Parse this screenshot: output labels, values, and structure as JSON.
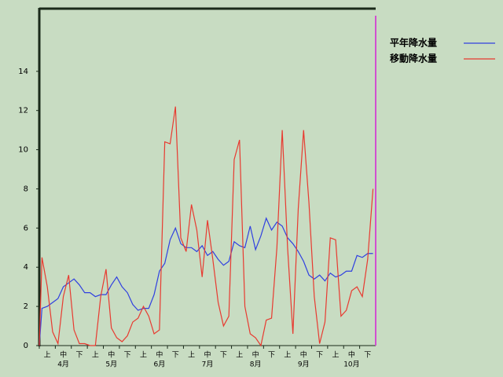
{
  "chart_data": {
    "type": "line",
    "categories": [
      null,
      "上",
      null,
      null,
      "中",
      null,
      null,
      "下",
      null,
      null,
      "上",
      null,
      null,
      "中",
      null,
      null,
      "下",
      null,
      null,
      "上",
      null,
      null,
      "中",
      null,
      null,
      "下",
      null,
      null,
      "上",
      null,
      null,
      "中",
      null,
      null,
      "下",
      null,
      null,
      "上",
      null,
      null,
      "中",
      null,
      null,
      "下",
      null,
      null,
      "上",
      null,
      null,
      "中",
      null,
      null,
      "下",
      null,
      null,
      "上",
      null,
      null,
      "中",
      null,
      null,
      "下",
      null
    ],
    "month_labels": [
      "4月",
      "5月",
      "6月",
      "7月",
      "8月",
      "9月",
      "10月"
    ],
    "series": [
      {
        "name": "平年降水量",
        "color": "#3040e0",
        "values": [
          1.9,
          2.0,
          2.2,
          2.4,
          3.0,
          3.2,
          3.4,
          3.1,
          2.7,
          2.7,
          2.5,
          2.6,
          2.6,
          3.1,
          3.5,
          3.0,
          2.7,
          2.1,
          1.8,
          1.9,
          1.9,
          2.6,
          3.8,
          4.2,
          5.4,
          6.0,
          5.2,
          5.0,
          5.0,
          4.8,
          5.1,
          4.6,
          4.8,
          4.4,
          4.1,
          4.3,
          5.3,
          5.1,
          5.0,
          6.1,
          4.9,
          5.6,
          6.5,
          5.9,
          6.3,
          6.1,
          5.5,
          5.2,
          4.8,
          4.3,
          3.6,
          3.4,
          3.6,
          3.3,
          3.7,
          3.5,
          3.6,
          3.8,
          3.8,
          4.6,
          4.5,
          4.7,
          4.7
        ]
      },
      {
        "name": "移動降水量",
        "color": "#e83a30",
        "values": [
          4.5,
          3.0,
          0.7,
          0.1,
          2.5,
          3.6,
          0.8,
          0.1,
          0.1,
          0,
          0,
          2.5,
          3.9,
          0.9,
          0.4,
          0.2,
          0.5,
          1.2,
          1.4,
          2.0,
          1.5,
          0.6,
          0.8,
          10.4,
          10.3,
          12.2,
          5.5,
          4.8,
          7.2,
          5.9,
          3.5,
          6.4,
          4.4,
          2.2,
          1.0,
          1.5,
          9.5,
          10.5,
          2.0,
          0.6,
          0.4,
          0,
          1.3,
          1.4,
          5.0,
          11.0,
          5.0,
          0.6,
          7.0,
          11.0,
          7.3,
          2.5,
          0.1,
          1.2,
          5.5,
          5.4,
          1.5,
          1.8,
          2.8,
          3.0,
          2.5,
          4.4,
          8.0
        ]
      }
    ],
    "ylim": [
      0,
      17.2
    ],
    "yticks": [
      0,
      2,
      4,
      6,
      8,
      10,
      12,
      14
    ]
  }
}
